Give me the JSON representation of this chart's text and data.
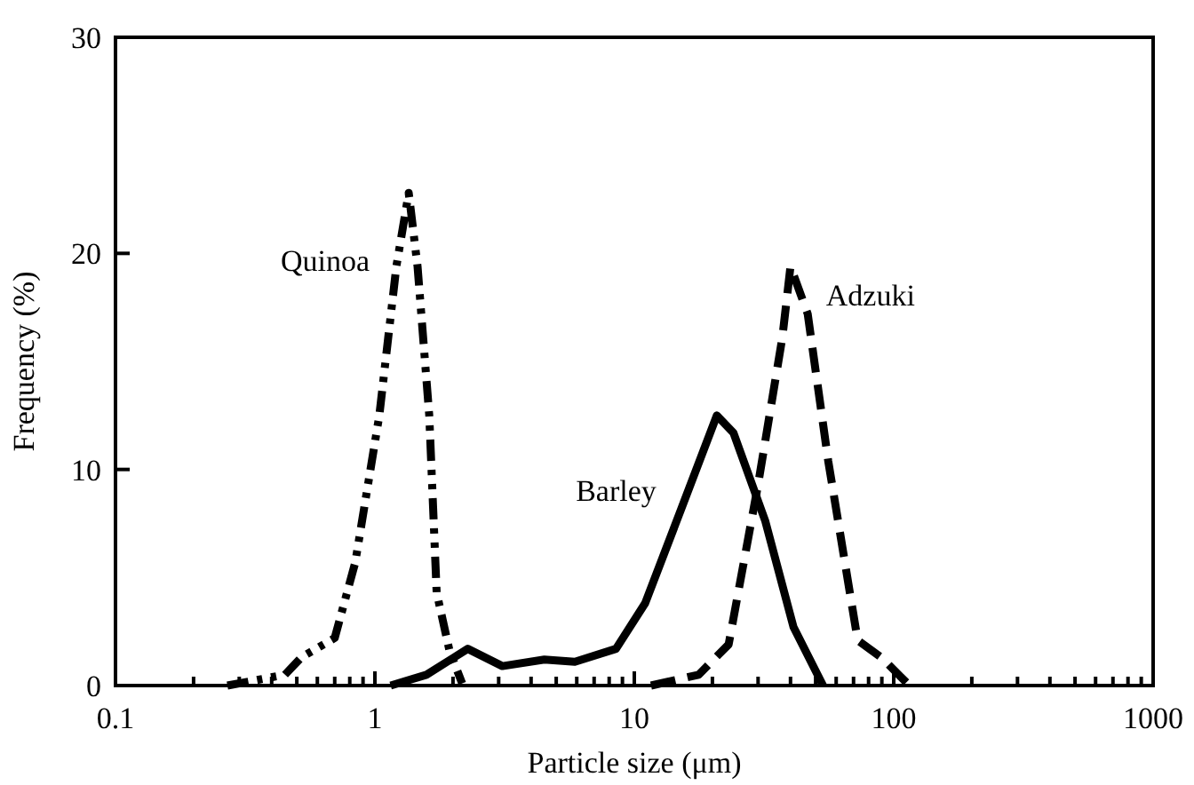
{
  "chart_data": {
    "type": "line",
    "xlabel": "Particle size (μm)",
    "ylabel": "Frequency (%)",
    "log": "x",
    "xlim": [
      0.1,
      1000
    ],
    "ylim": [
      0,
      30
    ],
    "yticks": [
      0,
      10,
      20,
      30
    ],
    "xticks": [
      0.1,
      {
        "value": 0.2,
        "label": null
      },
      {
        "value": 0.3,
        "label": null
      },
      {
        "value": 0.4,
        "label": null
      },
      {
        "value": 0.5,
        "label": null
      },
      {
        "value": 0.6,
        "label": null
      },
      {
        "value": 0.7,
        "label": null
      },
      {
        "value": 0.8,
        "label": null
      },
      {
        "value": 0.9,
        "label": null
      },
      1,
      {
        "value": 2,
        "label": null
      },
      {
        "value": 3,
        "label": null
      },
      {
        "value": 4,
        "label": null
      },
      {
        "value": 5,
        "label": null
      },
      {
        "value": 6,
        "label": null
      },
      {
        "value": 7,
        "label": null
      },
      {
        "value": 8,
        "label": null
      },
      {
        "value": 9,
        "label": null
      },
      10,
      {
        "value": 20,
        "label": null
      },
      {
        "value": 30,
        "label": null
      },
      {
        "value": 40,
        "label": null
      },
      {
        "value": 50,
        "label": null
      },
      {
        "value": 60,
        "label": null
      },
      {
        "value": 70,
        "label": null
      },
      {
        "value": 80,
        "label": null
      },
      {
        "value": 90,
        "label": null
      },
      100,
      {
        "value": 200,
        "label": null
      },
      {
        "value": 300,
        "label": null
      },
      {
        "value": 400,
        "label": null
      },
      {
        "value": 500,
        "label": null
      },
      {
        "value": 600,
        "label": null
      },
      {
        "value": 700,
        "label": null
      },
      {
        "value": 800,
        "label": null
      },
      {
        "value": 900,
        "label": null
      },
      1000
    ],
    "grid": false,
    "marker": "none",
    "series": [
      {
        "name": "Quinoa",
        "color": "#000000",
        "line_style": "dashdotdot",
        "x": [
          0.27,
          0.45,
          0.52,
          0.7,
          0.84,
          1.04,
          1.21,
          1.35,
          1.46,
          1.62,
          1.73,
          1.94,
          2.17
        ],
        "values": [
          0,
          0.5,
          1.3,
          2.2,
          5.7,
          12.5,
          19.4,
          22.8,
          19.4,
          12.5,
          4.3,
          1.6,
          0.1
        ]
      },
      {
        "name": "Barley",
        "color": "#000000",
        "line_style": "solid",
        "x": [
          1.15,
          1.58,
          2.28,
          3.1,
          4.5,
          5.9,
          8.5,
          11,
          15.2,
          20.8,
          24.1,
          32,
          41.1,
          53.4
        ],
        "values": [
          0,
          0.5,
          1.7,
          0.9,
          1.2,
          1.1,
          1.7,
          3.8,
          8.2,
          12.5,
          11.7,
          7.6,
          2.7,
          0
        ]
      },
      {
        "name": "Adzuki",
        "color": "#000000",
        "line_style": "dashed",
        "x": [
          11.6,
          17.7,
          23.1,
          30,
          37.2,
          40,
          46.6,
          55.9,
          72.6,
          89.6,
          115
        ],
        "values": [
          0,
          0.5,
          1.9,
          9.3,
          16.1,
          19.4,
          17.2,
          10.4,
          2.1,
          1.3,
          0
        ]
      }
    ]
  }
}
